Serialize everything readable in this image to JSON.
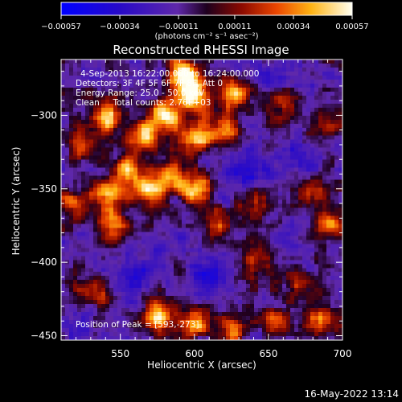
{
  "chart_data": {
    "type": "heatmap",
    "title": "Reconstructed RHESSI Image",
    "xlabel": "Heliocentric X (arcsec)",
    "ylabel": "Heliocentric Y (arcsec)",
    "xlim": [
      510,
      700
    ],
    "ylim": [
      -453,
      -262
    ],
    "x_ticks": [
      550,
      600,
      650,
      700
    ],
    "x_tick_labels": [
      "550",
      "600",
      "650",
      "700"
    ],
    "y_ticks": [
      -300,
      -350,
      -400,
      -450
    ],
    "y_tick_labels": [
      "−300",
      "−350",
      "−400",
      "−450"
    ],
    "colorbar": {
      "range": [
        -0.00057,
        0.00057
      ],
      "ticks": [
        -0.00057,
        -0.00034,
        -0.00011,
        0.00011,
        0.00034,
        0.00057
      ],
      "tick_labels": [
        "−0.00057",
        "−0.00034",
        "−0.00011",
        "0.00011",
        "0.00034",
        "0.00057"
      ],
      "unit_label": "(photons cm⁻² s⁻¹ asec⁻²)"
    },
    "annotations": {
      "time_range": "4-Sep-2013 16:22:00.000 to 16:24:00.000",
      "detectors": "Detectors: 3F 4F 5F 6F 7F 8F, Att 0",
      "energy_range": "Energy Range: 25.0 - 50.0 keV",
      "method_counts": "Clean     Total counts: 2.76E+03",
      "peak": "Position of Peak = [593,-273]"
    },
    "peak": {
      "x": 593,
      "y": -273
    },
    "bright_regions": [
      {
        "x": 540,
        "y": -300,
        "strength": 0.9
      },
      {
        "x": 565,
        "y": -315,
        "strength": 0.8
      },
      {
        "x": 580,
        "y": -300,
        "strength": 1.0
      },
      {
        "x": 600,
        "y": -315,
        "strength": 0.9
      },
      {
        "x": 620,
        "y": -310,
        "strength": 0.8
      },
      {
        "x": 600,
        "y": -285,
        "strength": 1.0
      },
      {
        "x": 593,
        "y": -273,
        "strength": 1.0
      },
      {
        "x": 628,
        "y": -285,
        "strength": 0.8
      },
      {
        "x": 555,
        "y": -340,
        "strength": 0.8
      },
      {
        "x": 570,
        "y": -352,
        "strength": 0.9
      },
      {
        "x": 583,
        "y": -340,
        "strength": 0.7
      },
      {
        "x": 600,
        "y": -350,
        "strength": 0.9
      },
      {
        "x": 540,
        "y": -355,
        "strength": 0.7
      },
      {
        "x": 525,
        "y": -320,
        "strength": 0.6
      },
      {
        "x": 520,
        "y": -360,
        "strength": 0.6
      },
      {
        "x": 545,
        "y": -375,
        "strength": 0.7
      },
      {
        "x": 615,
        "y": -375,
        "strength": 0.6
      },
      {
        "x": 640,
        "y": -360,
        "strength": 0.5
      },
      {
        "x": 680,
        "y": -350,
        "strength": 0.5
      },
      {
        "x": 690,
        "y": -375,
        "strength": 0.6
      },
      {
        "x": 660,
        "y": -295,
        "strength": 0.5
      },
      {
        "x": 690,
        "y": -305,
        "strength": 0.4
      },
      {
        "x": 640,
        "y": -400,
        "strength": 0.5
      },
      {
        "x": 670,
        "y": -415,
        "strength": 0.5
      },
      {
        "x": 575,
        "y": -437,
        "strength": 0.9
      },
      {
        "x": 600,
        "y": -440,
        "strength": 0.8
      },
      {
        "x": 625,
        "y": -447,
        "strength": 0.6
      },
      {
        "x": 655,
        "y": -440,
        "strength": 0.6
      },
      {
        "x": 685,
        "y": -440,
        "strength": 0.7
      },
      {
        "x": 530,
        "y": -420,
        "strength": 0.4
      }
    ],
    "negative_regions": [
      {
        "x": 635,
        "y": -340,
        "strength": 0.6
      },
      {
        "x": 560,
        "y": -410,
        "strength": 0.5
      },
      {
        "x": 610,
        "y": -410,
        "strength": 0.6
      },
      {
        "x": 670,
        "y": -330,
        "strength": 0.5
      },
      {
        "x": 520,
        "y": -440,
        "strength": 0.4
      },
      {
        "x": 650,
        "y": -270,
        "strength": 0.4
      }
    ]
  },
  "footer": {
    "timestamp": "16-May-2022 13:14"
  }
}
